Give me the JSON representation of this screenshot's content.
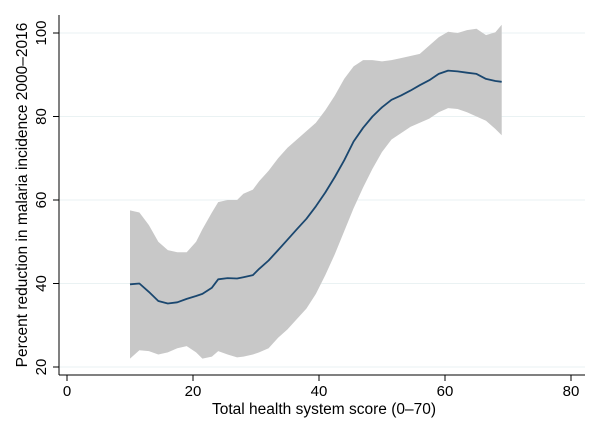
{
  "chart_data": {
    "type": "area",
    "xlabel": "Total health system score (0–70)",
    "ylabel": "Percent reduction in malaria incidence 2000–2016",
    "xlim": [
      0,
      80
    ],
    "ylim": [
      20,
      100
    ],
    "xticks": [
      0,
      20,
      40,
      60,
      80
    ],
    "yticks": [
      20,
      40,
      60,
      80,
      100
    ],
    "grid": "horizontal",
    "legend": "none",
    "colors": {
      "band": "#c8c8c8",
      "line": "#1a476f",
      "grid": "#eaf2f3"
    },
    "x": [
      10,
      11.5,
      13,
      14.5,
      16,
      17.5,
      19,
      20.5,
      21.5,
      23,
      24,
      25.5,
      27,
      28,
      29.5,
      30.5,
      32,
      33.5,
      35,
      36.5,
      38,
      39.5,
      41,
      42.5,
      44,
      45.5,
      47,
      48.5,
      50,
      51.5,
      53,
      54.5,
      56,
      57.5,
      59,
      60.5,
      62,
      63.5,
      65,
      66.5,
      68,
      69
    ],
    "series": [
      {
        "values": [
          39.8,
          40,
          38,
          35.8,
          35.2,
          35.5,
          36.3,
          37,
          37.5,
          39,
          41,
          41.3,
          41.2,
          41.5,
          42,
          43.5,
          45.5,
          48,
          50.5,
          53,
          55.5,
          58.5,
          61.8,
          65.5,
          69.5,
          74,
          77.3,
          80,
          82.2,
          84,
          85,
          86.2,
          87.5,
          88.7,
          90.2,
          91,
          90.8,
          90.5,
          90.2,
          89,
          88.5,
          88.3
        ],
        "lower": [
          22,
          24,
          23.8,
          23,
          23.5,
          24.5,
          25,
          23.5,
          22,
          22.5,
          23.8,
          23,
          22.3,
          22.5,
          23,
          23.5,
          24.5,
          27,
          29,
          31.5,
          34,
          37.5,
          42,
          47,
          52.5,
          58,
          63,
          67.5,
          71.5,
          74.5,
          76,
          77.5,
          78.5,
          79.5,
          81,
          82,
          81.8,
          81,
          80,
          79,
          77,
          75.5
        ],
        "upper": [
          57.5,
          57,
          54,
          50,
          48,
          47.5,
          47.5,
          50,
          53,
          57,
          59.5,
          60,
          60,
          61.5,
          62.5,
          64.5,
          67,
          70,
          72.5,
          74.5,
          76.5,
          78.5,
          81.5,
          85,
          89,
          92,
          93.5,
          93.5,
          93.2,
          93.5,
          94,
          94.5,
          95,
          97,
          99,
          100.3,
          100,
          100.7,
          101,
          99.5,
          100.2,
          102
        ]
      }
    ]
  }
}
